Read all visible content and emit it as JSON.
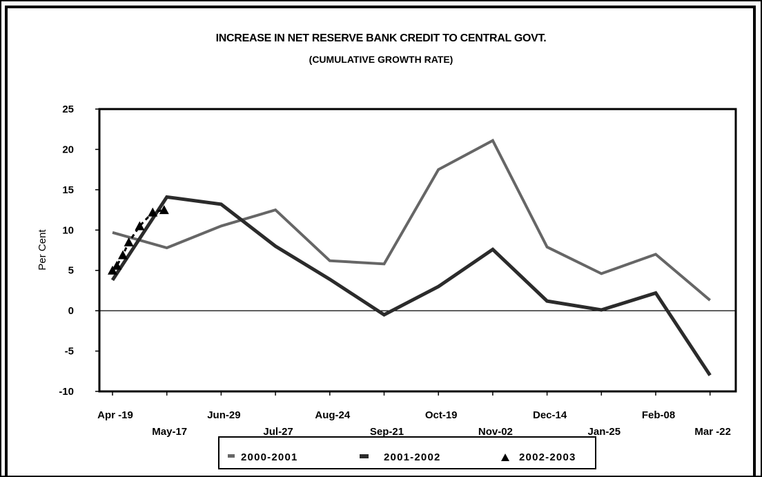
{
  "chart_data": {
    "type": "line",
    "title": "INCREASE IN NET RESERVE BANK CREDIT TO CENTRAL GOVT.",
    "subtitle": "(CUMULATIVE GROWTH RATE)",
    "ylabel": "Per Cent",
    "xlabel": "",
    "ylim": [
      -10,
      25
    ],
    "yticks": [
      25,
      20,
      15,
      10,
      5,
      0,
      -5,
      -10
    ],
    "categories": [
      "Apr-19",
      "May-17",
      "Jun-29",
      "Jul-27",
      "Aug-24",
      "Sep-21",
      "Oct-19",
      "Nov-02",
      "Dec-14",
      "Jan-25",
      "Feb-08",
      "Mar-22"
    ],
    "x_labels": [
      "Apr -19",
      "May-17",
      "Jun-29",
      "Jul-27",
      "Aug-24",
      "Sep-21",
      "Oct-19",
      "Nov-02",
      "Dec-14",
      "Jan-25",
      "Feb-08",
      "Mar -22"
    ],
    "legend_position": "bottom",
    "series": [
      {
        "name": "2000-2001",
        "color": "#666666",
        "marker": "none",
        "values": [
          9.7,
          7.8,
          10.5,
          12.5,
          6.2,
          5.8,
          17.5,
          21.1,
          7.9,
          4.6,
          7.0,
          1.3
        ]
      },
      {
        "name": "2001-2002",
        "color": "#2b2b2b",
        "marker": "none",
        "values": [
          3.8,
          14.1,
          13.2,
          8.0,
          3.9,
          -0.5,
          3.0,
          7.6,
          1.2,
          0.1,
          2.2,
          -8.0
        ]
      },
      {
        "name": "2002-2003",
        "color": "#000000",
        "marker": "triangle",
        "x": [
          0,
          0.08,
          0.19,
          0.3,
          0.5,
          0.74,
          0.95
        ],
        "values": [
          5.0,
          5.6,
          6.9,
          8.5,
          10.5,
          12.2,
          12.5
        ]
      }
    ]
  }
}
